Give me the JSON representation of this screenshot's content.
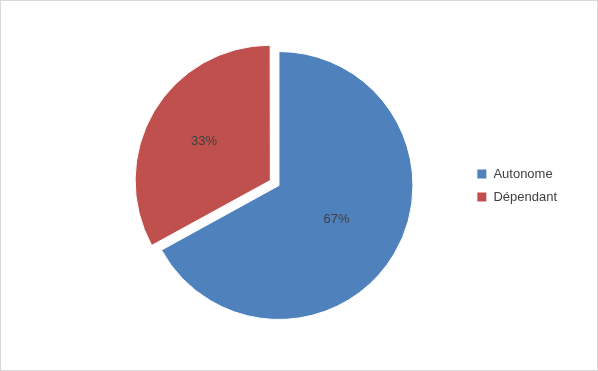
{
  "chart_data": {
    "type": "pie",
    "categories": [
      "Autonome",
      "Dépendant"
    ],
    "values": [
      67,
      33
    ],
    "value_labels": [
      "67%",
      "33%"
    ],
    "colors": [
      "#4f81bd",
      "#c0504d"
    ],
    "data_labels": true,
    "legend": "right"
  }
}
